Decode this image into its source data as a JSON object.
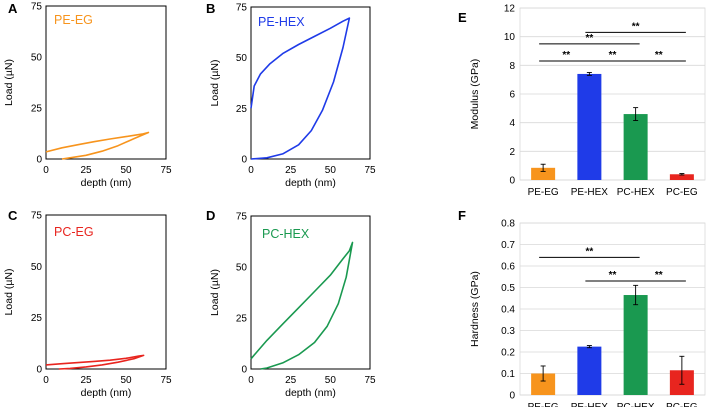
{
  "chart_data": [
    {
      "id": "A",
      "type": "line",
      "label": "PE-EG",
      "color": "#F7941D",
      "xlabel": "depth (nm)",
      "ylabel": "Load (µN)",
      "xlim": [
        0,
        75
      ],
      "ylim": [
        0,
        75
      ],
      "xticks": [
        "0",
        "25",
        "50",
        "75"
      ],
      "yticks": [
        "0",
        "25",
        "50",
        "75"
      ],
      "loading": [
        [
          0,
          3.5
        ],
        [
          10,
          5.5
        ],
        [
          20,
          7
        ],
        [
          30,
          8.5
        ],
        [
          40,
          9.8
        ],
        [
          50,
          11
        ],
        [
          60,
          12.2
        ],
        [
          64,
          13
        ]
      ],
      "unloading": [
        [
          64,
          13
        ],
        [
          55,
          10
        ],
        [
          45,
          6.5
        ],
        [
          35,
          3.8
        ],
        [
          25,
          1.8
        ],
        [
          15,
          0.6
        ],
        [
          10,
          0
        ]
      ]
    },
    {
      "id": "B",
      "type": "line",
      "label": "PE-HEX",
      "color": "#1F3BE8",
      "xlabel": "depth (nm)",
      "ylabel": "Load (µN)",
      "xlim": [
        0,
        75
      ],
      "ylim": [
        0,
        75
      ],
      "xticks": [
        "0",
        "25",
        "50",
        "75"
      ],
      "yticks": [
        "0",
        "25",
        "50",
        "75"
      ],
      "loading": [
        [
          0,
          25
        ],
        [
          2,
          36
        ],
        [
          6,
          42
        ],
        [
          12,
          47
        ],
        [
          20,
          52
        ],
        [
          30,
          56.5
        ],
        [
          40,
          60.5
        ],
        [
          50,
          64.5
        ],
        [
          58,
          68
        ],
        [
          62,
          69.5
        ]
      ],
      "unloading": [
        [
          62,
          69.5
        ],
        [
          58,
          55
        ],
        [
          52,
          38
        ],
        [
          45,
          24
        ],
        [
          38,
          14
        ],
        [
          30,
          7
        ],
        [
          20,
          2.5
        ],
        [
          10,
          0.6
        ],
        [
          0,
          0
        ]
      ]
    },
    {
      "id": "C",
      "type": "line",
      "label": "PC-EG",
      "color": "#E8251F",
      "xlabel": "depth (nm)",
      "ylabel": "Load (µN)",
      "xlim": [
        0,
        75
      ],
      "ylim": [
        0,
        75
      ],
      "xticks": [
        "0",
        "25",
        "50",
        "75"
      ],
      "yticks": [
        "0",
        "25",
        "50",
        "75"
      ],
      "loading": [
        [
          0,
          2
        ],
        [
          10,
          2.6
        ],
        [
          20,
          3.1
        ],
        [
          30,
          3.7
        ],
        [
          40,
          4.3
        ],
        [
          50,
          5.2
        ],
        [
          58,
          6.3
        ],
        [
          61,
          6.6
        ]
      ],
      "unloading": [
        [
          61,
          6.6
        ],
        [
          55,
          5
        ],
        [
          45,
          3.3
        ],
        [
          35,
          2
        ],
        [
          25,
          1
        ],
        [
          15,
          0.3
        ],
        [
          8,
          0
        ]
      ]
    },
    {
      "id": "D",
      "type": "line",
      "label": "PC-HEX",
      "color": "#1A9950",
      "xlabel": "depth (nm)",
      "ylabel": "Load (µN)",
      "xlim": [
        0,
        75
      ],
      "ylim": [
        0,
        75
      ],
      "xticks": [
        "0",
        "25",
        "50",
        "75"
      ],
      "yticks": [
        "0",
        "25",
        "50",
        "75"
      ],
      "loading": [
        [
          0,
          5
        ],
        [
          5,
          9.5
        ],
        [
          10,
          14
        ],
        [
          20,
          22
        ],
        [
          30,
          30
        ],
        [
          40,
          38
        ],
        [
          50,
          46
        ],
        [
          58,
          54
        ],
        [
          62,
          58
        ],
        [
          64,
          62
        ]
      ],
      "unloading": [
        [
          64,
          62
        ],
        [
          60,
          45
        ],
        [
          55,
          32
        ],
        [
          48,
          21
        ],
        [
          40,
          13
        ],
        [
          30,
          7
        ],
        [
          20,
          3
        ],
        [
          10,
          0.5
        ],
        [
          6,
          0
        ]
      ]
    },
    {
      "id": "E",
      "type": "bar",
      "ylabel": "Modulus (GPa)",
      "ylim": [
        0,
        12
      ],
      "yticks": [
        "0",
        "2",
        "4",
        "6",
        "8",
        "10",
        "12"
      ],
      "categories": [
        "PE-EG",
        "PE-HEX",
        "PC-HEX",
        "PC-EG"
      ],
      "values": [
        0.85,
        7.4,
        4.6,
        0.4
      ],
      "errors": [
        0.25,
        0.1,
        0.45,
        0.05
      ],
      "colors": [
        "#F7941D",
        "#1F3BE8",
        "#1A9950",
        "#E8251F"
      ],
      "significance": [
        {
          "from": 1,
          "to": 3,
          "level": 10.3,
          "label": "**"
        },
        {
          "from": 0,
          "to": 2,
          "level": 9.5,
          "label": "**"
        },
        {
          "from": 0,
          "to": 1,
          "level": 8.3,
          "label": "**"
        },
        {
          "from": 1,
          "to": 2,
          "level": 8.3,
          "label": "**"
        },
        {
          "from": 2,
          "to": 3,
          "level": 8.3,
          "label": "**"
        }
      ]
    },
    {
      "id": "F",
      "type": "bar",
      "ylabel": "Hardness (GPa)",
      "ylim": [
        0,
        0.8
      ],
      "yticks": [
        "0",
        "0.1",
        "0.2",
        "0.3",
        "0.4",
        "0.5",
        "0.6",
        "0.7",
        "0.8"
      ],
      "categories": [
        "PE-EG",
        "PE-HEX",
        "PC-HEX",
        "PC-EG"
      ],
      "values": [
        0.1,
        0.225,
        0.465,
        0.115
      ],
      "errors": [
        0.035,
        0.005,
        0.045,
        0.065
      ],
      "colors": [
        "#F7941D",
        "#1F3BE8",
        "#1A9950",
        "#E8251F"
      ],
      "significance": [
        {
          "from": 0,
          "to": 2,
          "level": 0.64,
          "label": "**"
        },
        {
          "from": 1,
          "to": 2,
          "level": 0.53,
          "label": "**"
        },
        {
          "from": 2,
          "to": 3,
          "level": 0.53,
          "label": "**"
        }
      ]
    }
  ]
}
